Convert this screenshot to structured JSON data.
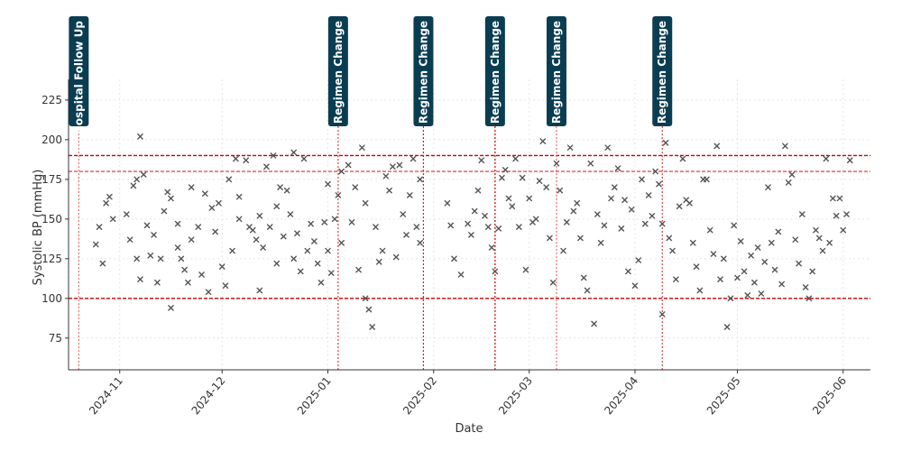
{
  "chart_data": {
    "type": "scatter",
    "title": "",
    "xlabel": "Date",
    "ylabel": "Systolic BP (mmHg)",
    "x_range": [
      "2024-10-17",
      "2025-06-09"
    ],
    "ylim": [
      55,
      238
    ],
    "x_ticks": [
      "2024-11",
      "2024-12",
      "2025-01",
      "2025-02",
      "2025-03",
      "2025-04",
      "2025-05",
      "2025-06"
    ],
    "y_ticks": [
      75,
      100,
      125,
      150,
      175,
      200,
      225
    ],
    "grid": true,
    "marker": "x",
    "marker_color": "#555555",
    "reference_lines": [
      {
        "y": 190,
        "color": "#cc0000",
        "style": "dashed"
      },
      {
        "y": 180,
        "color": "#e85050",
        "style": "dashed"
      },
      {
        "y": 100,
        "color": "#cc0000",
        "style": "dashed"
      }
    ],
    "event_color": "#0b3d52",
    "events": [
      {
        "date": "2024-10-20",
        "label": "Hospital Follow Up",
        "line_color": "#f07070"
      },
      {
        "date": "2025-01-04",
        "label": "Regimen Change",
        "line_color": "#e04040"
      },
      {
        "date": "2025-01-29",
        "label": "Regimen Change",
        "line_color": "#cc2020"
      },
      {
        "date": "2025-02-19",
        "label": "Regimen Change",
        "line_color": "#cc0000"
      },
      {
        "date": "2025-03-09",
        "label": "Regimen Change",
        "line_color": "#f07070"
      },
      {
        "date": "2025-04-09",
        "label": "Regimen Change",
        "line_color": "#e04040"
      }
    ],
    "series": [
      {
        "name": "Systolic BP",
        "points": [
          [
            "2024-10-25",
            134
          ],
          [
            "2024-10-26",
            145
          ],
          [
            "2024-10-27",
            122
          ],
          [
            "2024-10-28",
            160
          ],
          [
            "2024-10-29",
            164
          ],
          [
            "2024-10-30",
            150
          ],
          [
            "2024-11-03",
            153
          ],
          [
            "2024-11-04",
            137
          ],
          [
            "2024-11-05",
            171
          ],
          [
            "2024-11-06",
            175
          ],
          [
            "2024-11-06",
            125
          ],
          [
            "2024-11-07",
            202
          ],
          [
            "2024-11-07",
            112
          ],
          [
            "2024-11-08",
            178
          ],
          [
            "2024-11-09",
            146
          ],
          [
            "2024-11-10",
            127
          ],
          [
            "2024-11-11",
            140
          ],
          [
            "2024-11-12",
            110
          ],
          [
            "2024-11-13",
            125
          ],
          [
            "2024-11-14",
            155
          ],
          [
            "2024-11-15",
            167
          ],
          [
            "2024-11-16",
            163
          ],
          [
            "2024-11-16",
            94
          ],
          [
            "2024-11-18",
            147
          ],
          [
            "2024-11-18",
            132
          ],
          [
            "2024-11-19",
            125
          ],
          [
            "2024-11-20",
            118
          ],
          [
            "2024-11-21",
            110
          ],
          [
            "2024-11-22",
            170
          ],
          [
            "2024-11-22",
            137
          ],
          [
            "2024-11-24",
            145
          ],
          [
            "2024-11-25",
            115
          ],
          [
            "2024-11-26",
            166
          ],
          [
            "2024-11-27",
            104
          ],
          [
            "2024-11-28",
            157
          ],
          [
            "2024-11-29",
            142
          ],
          [
            "2024-11-30",
            160
          ],
          [
            "2024-12-01",
            120
          ],
          [
            "2024-12-02",
            108
          ],
          [
            "2024-12-03",
            175
          ],
          [
            "2024-12-04",
            130
          ],
          [
            "2024-12-05",
            188
          ],
          [
            "2024-12-06",
            150
          ],
          [
            "2024-12-06",
            164
          ],
          [
            "2024-12-08",
            187
          ],
          [
            "2024-12-09",
            145
          ],
          [
            "2024-12-10",
            143
          ],
          [
            "2024-12-11",
            137
          ],
          [
            "2024-12-12",
            152
          ],
          [
            "2024-12-12",
            105
          ],
          [
            "2024-12-13",
            132
          ],
          [
            "2024-12-14",
            183
          ],
          [
            "2024-12-15",
            145
          ],
          [
            "2024-12-16",
            190
          ],
          [
            "2024-12-17",
            158
          ],
          [
            "2024-12-17",
            122
          ],
          [
            "2024-12-18",
            170
          ],
          [
            "2024-12-19",
            139
          ],
          [
            "2024-12-20",
            168
          ],
          [
            "2024-12-21",
            153
          ],
          [
            "2024-12-22",
            192
          ],
          [
            "2024-12-22",
            125
          ],
          [
            "2024-12-23",
            141
          ],
          [
            "2024-12-24",
            117
          ],
          [
            "2024-12-25",
            188
          ],
          [
            "2024-12-26",
            130
          ],
          [
            "2024-12-27",
            147
          ],
          [
            "2024-12-28",
            136
          ],
          [
            "2024-12-29",
            122
          ],
          [
            "2024-12-30",
            110
          ],
          [
            "2024-12-31",
            148
          ],
          [
            "2025-01-01",
            172
          ],
          [
            "2025-01-01",
            130
          ],
          [
            "2025-01-02",
            116
          ],
          [
            "2025-01-03",
            150
          ],
          [
            "2025-01-04",
            165
          ],
          [
            "2025-01-05",
            180
          ],
          [
            "2025-01-05",
            135
          ],
          [
            "2025-01-07",
            184
          ],
          [
            "2025-01-08",
            148
          ],
          [
            "2025-01-09",
            170
          ],
          [
            "2025-01-10",
            118
          ],
          [
            "2025-01-11",
            195
          ],
          [
            "2025-01-12",
            160
          ],
          [
            "2025-01-12",
            100
          ],
          [
            "2025-01-13",
            93
          ],
          [
            "2025-01-14",
            82
          ],
          [
            "2025-01-15",
            145
          ],
          [
            "2025-01-16",
            123
          ],
          [
            "2025-01-17",
            130
          ],
          [
            "2025-01-18",
            177
          ],
          [
            "2025-01-19",
            168
          ],
          [
            "2025-01-20",
            183
          ],
          [
            "2025-01-21",
            126
          ],
          [
            "2025-01-22",
            184
          ],
          [
            "2025-01-23",
            153
          ],
          [
            "2025-01-24",
            140
          ],
          [
            "2025-01-25",
            165
          ],
          [
            "2025-01-26",
            188
          ],
          [
            "2025-01-27",
            145
          ],
          [
            "2025-01-28",
            175
          ],
          [
            "2025-01-28",
            135
          ],
          [
            "2025-02-05",
            160
          ],
          [
            "2025-02-06",
            146
          ],
          [
            "2025-02-07",
            125
          ],
          [
            "2025-02-09",
            115
          ],
          [
            "2025-02-11",
            147
          ],
          [
            "2025-02-12",
            140
          ],
          [
            "2025-02-13",
            155
          ],
          [
            "2025-02-14",
            168
          ],
          [
            "2025-02-15",
            187
          ],
          [
            "2025-02-16",
            152
          ],
          [
            "2025-02-17",
            145
          ],
          [
            "2025-02-18",
            132
          ],
          [
            "2025-02-19",
            117
          ],
          [
            "2025-02-20",
            144
          ],
          [
            "2025-02-21",
            176
          ],
          [
            "2025-02-22",
            181
          ],
          [
            "2025-02-23",
            163
          ],
          [
            "2025-02-24",
            158
          ],
          [
            "2025-02-25",
            188
          ],
          [
            "2025-02-26",
            145
          ],
          [
            "2025-02-27",
            176
          ],
          [
            "2025-02-28",
            118
          ],
          [
            "2025-03-01",
            163
          ],
          [
            "2025-03-02",
            148
          ],
          [
            "2025-03-03",
            150
          ],
          [
            "2025-03-04",
            174
          ],
          [
            "2025-03-05",
            199
          ],
          [
            "2025-03-06",
            170
          ],
          [
            "2025-03-07",
            138
          ],
          [
            "2025-03-08",
            110
          ],
          [
            "2025-03-09",
            185
          ],
          [
            "2025-03-10",
            168
          ],
          [
            "2025-03-11",
            130
          ],
          [
            "2025-03-12",
            148
          ],
          [
            "2025-03-13",
            195
          ],
          [
            "2025-03-14",
            155
          ],
          [
            "2025-03-15",
            160
          ],
          [
            "2025-03-16",
            138
          ],
          [
            "2025-03-17",
            113
          ],
          [
            "2025-03-18",
            105
          ],
          [
            "2025-03-19",
            185
          ],
          [
            "2025-03-20",
            84
          ],
          [
            "2025-03-21",
            153
          ],
          [
            "2025-03-22",
            135
          ],
          [
            "2025-03-23",
            146
          ],
          [
            "2025-03-24",
            195
          ],
          [
            "2025-03-25",
            163
          ],
          [
            "2025-03-26",
            170
          ],
          [
            "2025-03-27",
            182
          ],
          [
            "2025-03-28",
            144
          ],
          [
            "2025-03-29",
            162
          ],
          [
            "2025-03-30",
            117
          ],
          [
            "2025-03-31",
            156
          ],
          [
            "2025-04-01",
            108
          ],
          [
            "2025-04-02",
            124
          ],
          [
            "2025-04-03",
            175
          ],
          [
            "2025-04-04",
            147
          ],
          [
            "2025-04-05",
            165
          ],
          [
            "2025-04-06",
            152
          ],
          [
            "2025-04-07",
            180
          ],
          [
            "2025-04-08",
            172
          ],
          [
            "2025-04-09",
            147
          ],
          [
            "2025-04-09",
            90
          ],
          [
            "2025-04-10",
            198
          ],
          [
            "2025-04-11",
            138
          ],
          [
            "2025-04-12",
            130
          ],
          [
            "2025-04-13",
            112
          ],
          [
            "2025-04-14",
            158
          ],
          [
            "2025-04-15",
            188
          ],
          [
            "2025-04-16",
            162
          ],
          [
            "2025-04-17",
            160
          ],
          [
            "2025-04-18",
            135
          ],
          [
            "2025-04-19",
            120
          ],
          [
            "2025-04-20",
            105
          ],
          [
            "2025-04-21",
            175
          ],
          [
            "2025-04-22",
            175
          ],
          [
            "2025-04-23",
            143
          ],
          [
            "2025-04-24",
            128
          ],
          [
            "2025-04-25",
            196
          ],
          [
            "2025-04-26",
            112
          ],
          [
            "2025-04-27",
            125
          ],
          [
            "2025-04-28",
            82
          ],
          [
            "2025-04-29",
            100
          ],
          [
            "2025-04-30",
            146
          ],
          [
            "2025-05-01",
            113
          ],
          [
            "2025-05-02",
            136
          ],
          [
            "2025-05-03",
            117
          ],
          [
            "2025-05-04",
            102
          ],
          [
            "2025-05-05",
            127
          ],
          [
            "2025-05-06",
            110
          ],
          [
            "2025-05-07",
            132
          ],
          [
            "2025-05-08",
            103
          ],
          [
            "2025-05-09",
            123
          ],
          [
            "2025-05-10",
            170
          ],
          [
            "2025-05-11",
            135
          ],
          [
            "2025-05-12",
            118
          ],
          [
            "2025-05-13",
            142
          ],
          [
            "2025-05-14",
            109
          ],
          [
            "2025-05-15",
            196
          ],
          [
            "2025-05-16",
            173
          ],
          [
            "2025-05-17",
            178
          ],
          [
            "2025-05-18",
            137
          ],
          [
            "2025-05-19",
            122
          ],
          [
            "2025-05-20",
            153
          ],
          [
            "2025-05-21",
            107
          ],
          [
            "2025-05-22",
            100
          ],
          [
            "2025-05-23",
            117
          ],
          [
            "2025-05-24",
            143
          ],
          [
            "2025-05-25",
            138
          ],
          [
            "2025-05-26",
            130
          ],
          [
            "2025-05-27",
            188
          ],
          [
            "2025-05-28",
            135
          ],
          [
            "2025-05-29",
            163
          ],
          [
            "2025-05-30",
            152
          ],
          [
            "2025-05-31",
            163
          ],
          [
            "2025-06-01",
            143
          ],
          [
            "2025-06-02",
            153
          ],
          [
            "2025-06-03",
            187
          ]
        ]
      }
    ]
  }
}
